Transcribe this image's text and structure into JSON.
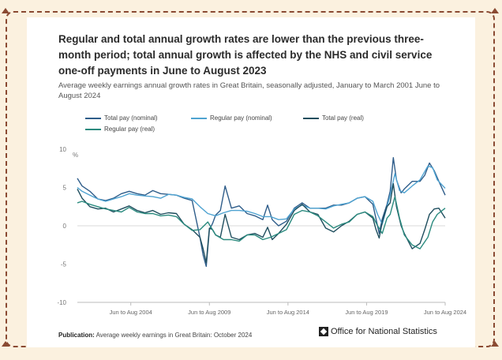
{
  "title": "Regular and total annual growth rates are lower than the previous three-month period; total annual growth is affected by the NHS and civil service one-off payments in June to August 2023",
  "subtitle": "Average weekly earnings annual growth rates in Great Britain, seasonally adjusted, January to March 2001 June to August 2024",
  "footer": {
    "label": "Publication:",
    "text": "Average weekly earnings in Great Britain: October 2024"
  },
  "brand": "Office for National Statistics",
  "chart_data": {
    "type": "line",
    "y_unit": "%",
    "ylim": [
      -10,
      10
    ],
    "yticks": [
      10,
      5,
      0,
      -5,
      -10
    ],
    "x_domain": [
      2001.2,
      2024.6
    ],
    "xticks": [
      {
        "label": "Jun to Aug 2004",
        "pos": 2004.6
      },
      {
        "label": "Jun to Aug 2009",
        "pos": 2009.6
      },
      {
        "label": "Jun to Aug 2014",
        "pos": 2014.6
      },
      {
        "label": "Jun to Aug 2019",
        "pos": 2019.6
      },
      {
        "label": "Jun to Aug 2024",
        "pos": 2024.6
      }
    ],
    "grid": false,
    "series": [
      {
        "name": "Total pay (nominal)",
        "color": "#2f5d8a",
        "x": [
          2001.2,
          2001.5,
          2002,
          2002.5,
          2003,
          2003.5,
          2004,
          2004.5,
          2005,
          2005.5,
          2006,
          2006.5,
          2007,
          2007.5,
          2008,
          2008.5,
          2009,
          2009.2,
          2009.4,
          2009.6,
          2009.8,
          2010,
          2010.3,
          2010.6,
          2011,
          2011.5,
          2012,
          2012.5,
          2013,
          2013.3,
          2013.6,
          2014,
          2014.5,
          2015,
          2015.5,
          2016,
          2016.5,
          2017,
          2017.5,
          2018,
          2018.5,
          2019,
          2019.5,
          2020,
          2020.2,
          2020.4,
          2020.6,
          2020.9,
          2021.1,
          2021.3,
          2021.5,
          2021.8,
          2022,
          2022.5,
          2023,
          2023.3,
          2023.6,
          2023.9,
          2024.2,
          2024.6
        ],
        "values": [
          6.2,
          5.2,
          4.5,
          3.5,
          3.3,
          3.6,
          4.2,
          4.5,
          4.2,
          4.0,
          4.6,
          4.2,
          4.1,
          4.0,
          3.6,
          3.3,
          -1.5,
          -3.8,
          -5.3,
          -0.5,
          0.3,
          1.4,
          2.0,
          5.2,
          2.3,
          2.6,
          1.6,
          1.3,
          0.8,
          2.7,
          0.8,
          0.0,
          0.6,
          2.3,
          3.0,
          2.3,
          2.3,
          2.3,
          2.7,
          2.7,
          3.0,
          3.6,
          3.8,
          2.8,
          0.9,
          -1.0,
          0.9,
          2.8,
          4.5,
          8.9,
          6.0,
          4.3,
          4.8,
          5.8,
          5.8,
          6.6,
          8.2,
          7.2,
          5.8,
          4.0
        ]
      },
      {
        "name": "Regular pay (nominal)",
        "color": "#4fa3d1",
        "x": [
          2001.2,
          2001.5,
          2002,
          2002.5,
          2003,
          2003.5,
          2004,
          2004.5,
          2005,
          2005.5,
          2006,
          2006.5,
          2007,
          2007.5,
          2008,
          2008.5,
          2009,
          2009.5,
          2010,
          2010.5,
          2011,
          2011.5,
          2012,
          2012.5,
          2013,
          2013.5,
          2014,
          2014.5,
          2015,
          2015.5,
          2016,
          2016.5,
          2017,
          2017.5,
          2018,
          2018.5,
          2019,
          2019.5,
          2020,
          2020.3,
          2020.6,
          2020.9,
          2021.1,
          2021.4,
          2021.7,
          2022,
          2022.5,
          2023,
          2023.5,
          2023.8,
          2024.1,
          2024.6
        ],
        "values": [
          5.0,
          4.5,
          4.0,
          3.5,
          3.2,
          3.5,
          3.8,
          4.2,
          4.0,
          3.9,
          3.8,
          3.6,
          4.1,
          4.0,
          3.7,
          3.5,
          2.5,
          1.6,
          1.3,
          1.7,
          2.0,
          2.0,
          1.9,
          1.6,
          1.2,
          1.2,
          0.8,
          0.9,
          2.2,
          2.7,
          2.3,
          2.3,
          2.2,
          2.6,
          2.8,
          3.0,
          3.6,
          3.8,
          3.2,
          1.5,
          0.2,
          2.5,
          4.0,
          6.8,
          4.6,
          4.3,
          5.2,
          6.0,
          7.8,
          7.6,
          6.0,
          4.9
        ]
      },
      {
        "name": "Total pay (real)",
        "color": "#1f4e5e",
        "x": [
          2001.2,
          2001.5,
          2002,
          2002.5,
          2003,
          2003.5,
          2004,
          2004.5,
          2005,
          2005.5,
          2006,
          2006.5,
          2007,
          2007.5,
          2008,
          2008.5,
          2009,
          2009.2,
          2009.4,
          2009.6,
          2009.8,
          2010,
          2010.3,
          2010.6,
          2011,
          2011.5,
          2012,
          2012.5,
          2013,
          2013.3,
          2013.6,
          2014,
          2014.5,
          2015,
          2015.5,
          2016,
          2016.5,
          2017,
          2017.5,
          2018,
          2018.5,
          2019,
          2019.5,
          2020,
          2020.2,
          2020.4,
          2020.6,
          2020.9,
          2021.1,
          2021.3,
          2021.5,
          2021.8,
          2022,
          2022.5,
          2023,
          2023.3,
          2023.6,
          2023.9,
          2024.2,
          2024.6
        ],
        "values": [
          4.8,
          3.6,
          2.5,
          2.2,
          2.3,
          1.8,
          2.2,
          2.6,
          2.0,
          1.7,
          2.0,
          1.5,
          1.7,
          1.6,
          0.2,
          -0.5,
          -1.5,
          -3.0,
          -4.8,
          -0.3,
          -0.5,
          -1.2,
          -1.5,
          1.5,
          -1.5,
          -1.8,
          -1.2,
          -1.0,
          -1.5,
          -0.2,
          -1.8,
          -1.0,
          0.2,
          2.0,
          2.8,
          1.8,
          1.5,
          -0.3,
          -0.8,
          0.0,
          0.6,
          1.5,
          1.8,
          1.0,
          -0.5,
          -1.6,
          0.5,
          2.5,
          3.0,
          5.5,
          2.5,
          0.0,
          -1.0,
          -3.0,
          -2.3,
          -0.5,
          1.5,
          2.2,
          2.3,
          1.0
        ]
      },
      {
        "name": "Regular pay (real)",
        "color": "#2a8a7e",
        "x": [
          2001.2,
          2001.5,
          2002,
          2002.5,
          2003,
          2003.5,
          2004,
          2004.5,
          2005,
          2005.5,
          2006,
          2006.5,
          2007,
          2007.5,
          2008,
          2008.5,
          2009,
          2009.5,
          2010,
          2010.5,
          2011,
          2011.5,
          2012,
          2012.5,
          2013,
          2013.5,
          2014,
          2014.5,
          2015,
          2015.5,
          2016,
          2016.5,
          2017,
          2017.5,
          2018,
          2018.5,
          2019,
          2019.5,
          2020,
          2020.3,
          2020.6,
          2020.9,
          2021.1,
          2021.4,
          2021.7,
          2022,
          2022.5,
          2023,
          2023.5,
          2023.8,
          2024.1,
          2024.6
        ],
        "values": [
          3.0,
          3.2,
          2.8,
          2.5,
          2.2,
          2.0,
          1.8,
          2.4,
          1.8,
          1.6,
          1.6,
          1.3,
          1.4,
          1.2,
          0.2,
          -0.6,
          -0.5,
          0.5,
          -1.2,
          -1.8,
          -1.8,
          -2.0,
          -1.2,
          -1.2,
          -1.8,
          -1.5,
          -1.0,
          -0.5,
          1.5,
          2.0,
          1.8,
          1.3,
          0.5,
          -0.3,
          0.2,
          0.5,
          1.5,
          1.8,
          1.2,
          0.0,
          -1.0,
          1.0,
          1.5,
          3.8,
          1.0,
          -1.2,
          -2.5,
          -3.0,
          -1.5,
          0.5,
          1.5,
          2.3
        ]
      }
    ]
  }
}
